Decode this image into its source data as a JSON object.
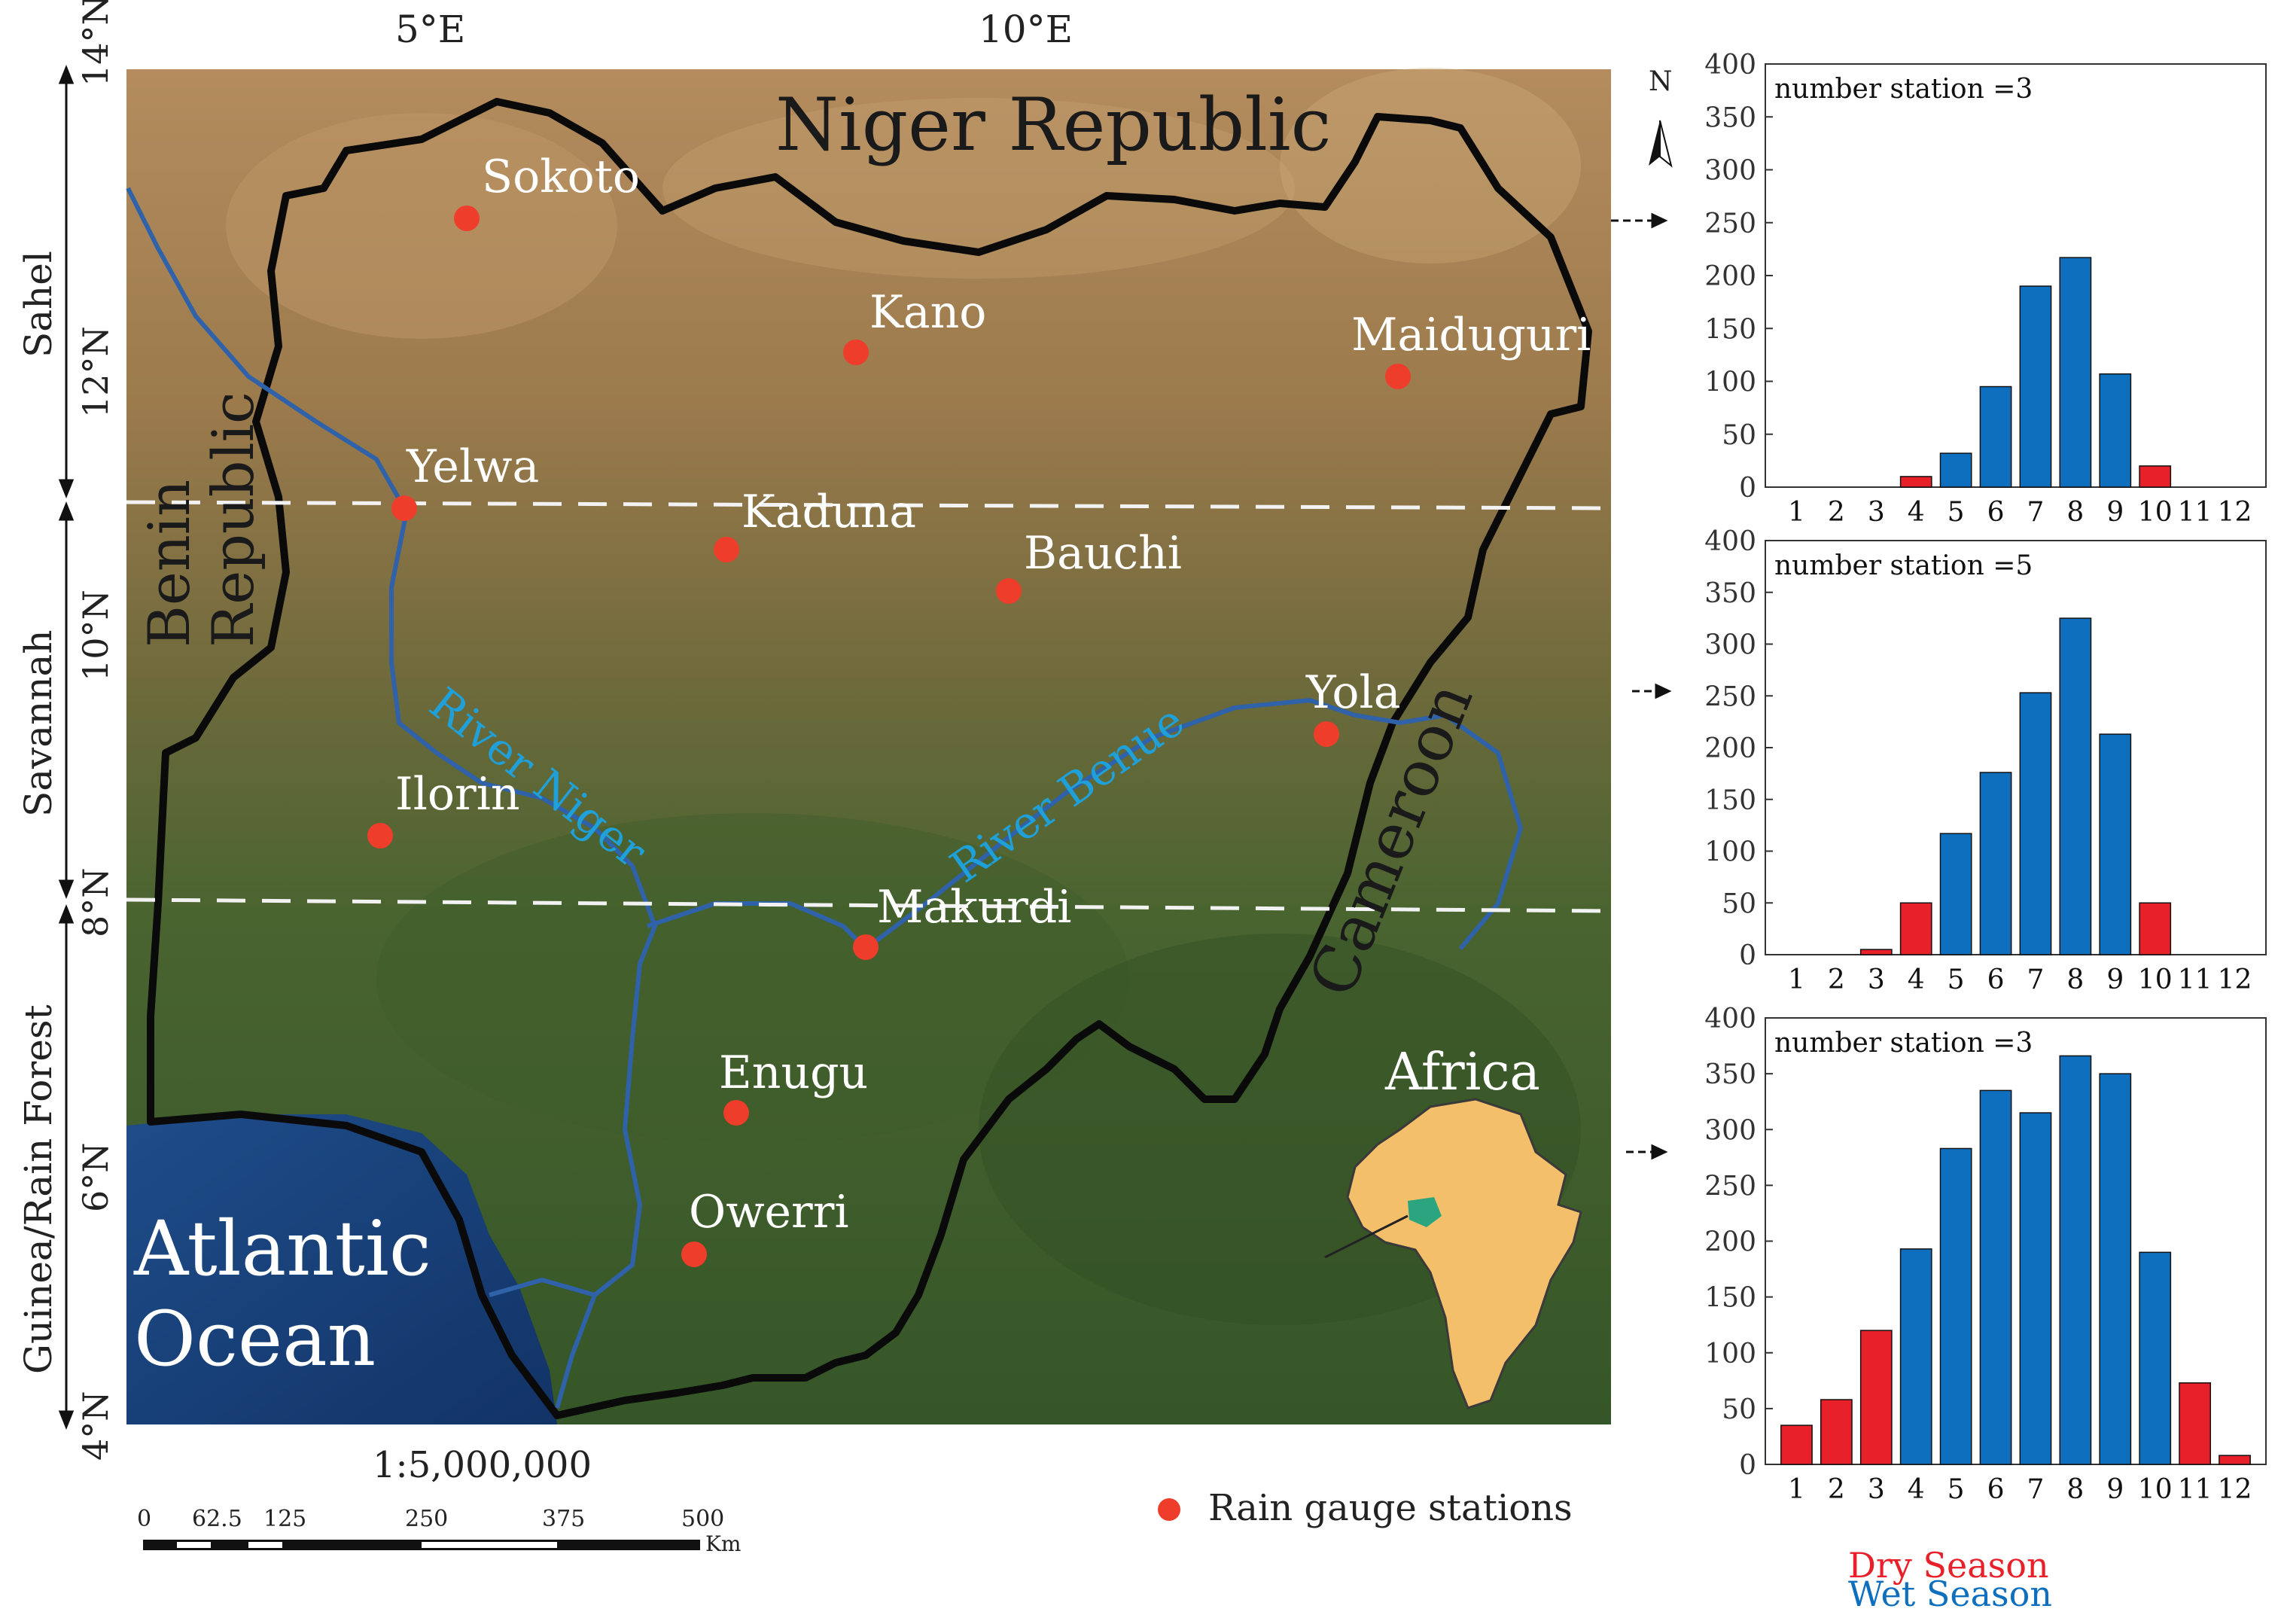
{
  "colors": {
    "dry": "#e8202a",
    "wet": "#0f6fbf",
    "station": "#ef3d2b",
    "boundary": "#0a0a0a",
    "river": "#2f62a8",
    "river_label": "#1fa0d8",
    "ocean": "#1c3f7a",
    "land_north": "#a98458",
    "land_south": "#3e5e2c",
    "africa": "#f4bf6a",
    "nigeria_highlight": "#2aa580"
  },
  "map": {
    "top_ticks": [
      "5°E",
      "10°E"
    ],
    "left_ticks": [
      "14°N",
      "12°N",
      "10°N",
      "8°N",
      "6°N",
      "4°N"
    ],
    "zones": [
      "Sahel",
      "Savannah",
      "Guinea/Rain Forest"
    ],
    "country_labels": {
      "north": "Niger Republic",
      "west_1": "Benin",
      "west_2": "Republic",
      "east": "Cameroon",
      "ocean_1": "Atlantic",
      "ocean_2": "Ocean",
      "inset": "Africa"
    },
    "rivers": [
      "River Niger",
      "River Benue"
    ],
    "stations": [
      "Sokoto",
      "Kano",
      "Maiduguri",
      "Yelwa",
      "Kaduna",
      "Bauchi",
      "Yola",
      "Ilorin",
      "Makurdi",
      "Enugu",
      "Owerri"
    ],
    "north_arrow": "N",
    "scale_ratio": "1:5,000,000",
    "scale_ticks": [
      "0",
      "62.5",
      "125",
      "250",
      "375",
      "500"
    ],
    "scale_unit": "Km",
    "legend_label": "Rain gauge stations"
  },
  "chart_data": [
    {
      "type": "bar",
      "title": "number station =3",
      "categories": [
        "1",
        "2",
        "3",
        "4",
        "5",
        "6",
        "7",
        "8",
        "9",
        "10",
        "11",
        "12"
      ],
      "ylim": [
        0,
        400
      ],
      "yticks": [
        "0",
        "50",
        "100",
        "150",
        "200",
        "250",
        "300",
        "350",
        "400"
      ],
      "values": [
        0,
        0,
        0,
        10,
        32,
        95,
        190,
        217,
        107,
        20,
        0,
        0
      ],
      "season": [
        "dry",
        "dry",
        "dry",
        "dry",
        "wet",
        "wet",
        "wet",
        "wet",
        "wet",
        "dry",
        "dry",
        "dry"
      ]
    },
    {
      "type": "bar",
      "title": "number station =5",
      "categories": [
        "1",
        "2",
        "3",
        "4",
        "5",
        "6",
        "7",
        "8",
        "9",
        "10",
        "11",
        "12"
      ],
      "ylim": [
        0,
        400
      ],
      "yticks": [
        "0",
        "50",
        "100",
        "150",
        "200",
        "250",
        "300",
        "350",
        "400"
      ],
      "values": [
        0,
        0,
        5,
        50,
        117,
        176,
        253,
        325,
        213,
        50,
        0,
        0
      ],
      "season": [
        "dry",
        "dry",
        "dry",
        "dry",
        "wet",
        "wet",
        "wet",
        "wet",
        "wet",
        "dry",
        "dry",
        "dry"
      ]
    },
    {
      "type": "bar",
      "title": "number station =3",
      "categories": [
        "1",
        "2",
        "3",
        "4",
        "5",
        "6",
        "7",
        "8",
        "9",
        "10",
        "11",
        "12"
      ],
      "ylim": [
        0,
        400
      ],
      "yticks": [
        "0",
        "50",
        "100",
        "150",
        "200",
        "250",
        "300",
        "350",
        "400"
      ],
      "values": [
        35,
        58,
        120,
        193,
        283,
        335,
        315,
        366,
        350,
        190,
        73,
        8
      ],
      "season": [
        "dry",
        "dry",
        "dry",
        "wet",
        "wet",
        "wet",
        "wet",
        "wet",
        "wet",
        "wet",
        "dry",
        "dry"
      ]
    }
  ],
  "legend": {
    "dry": "Dry Season",
    "wet": "Wet Season"
  }
}
